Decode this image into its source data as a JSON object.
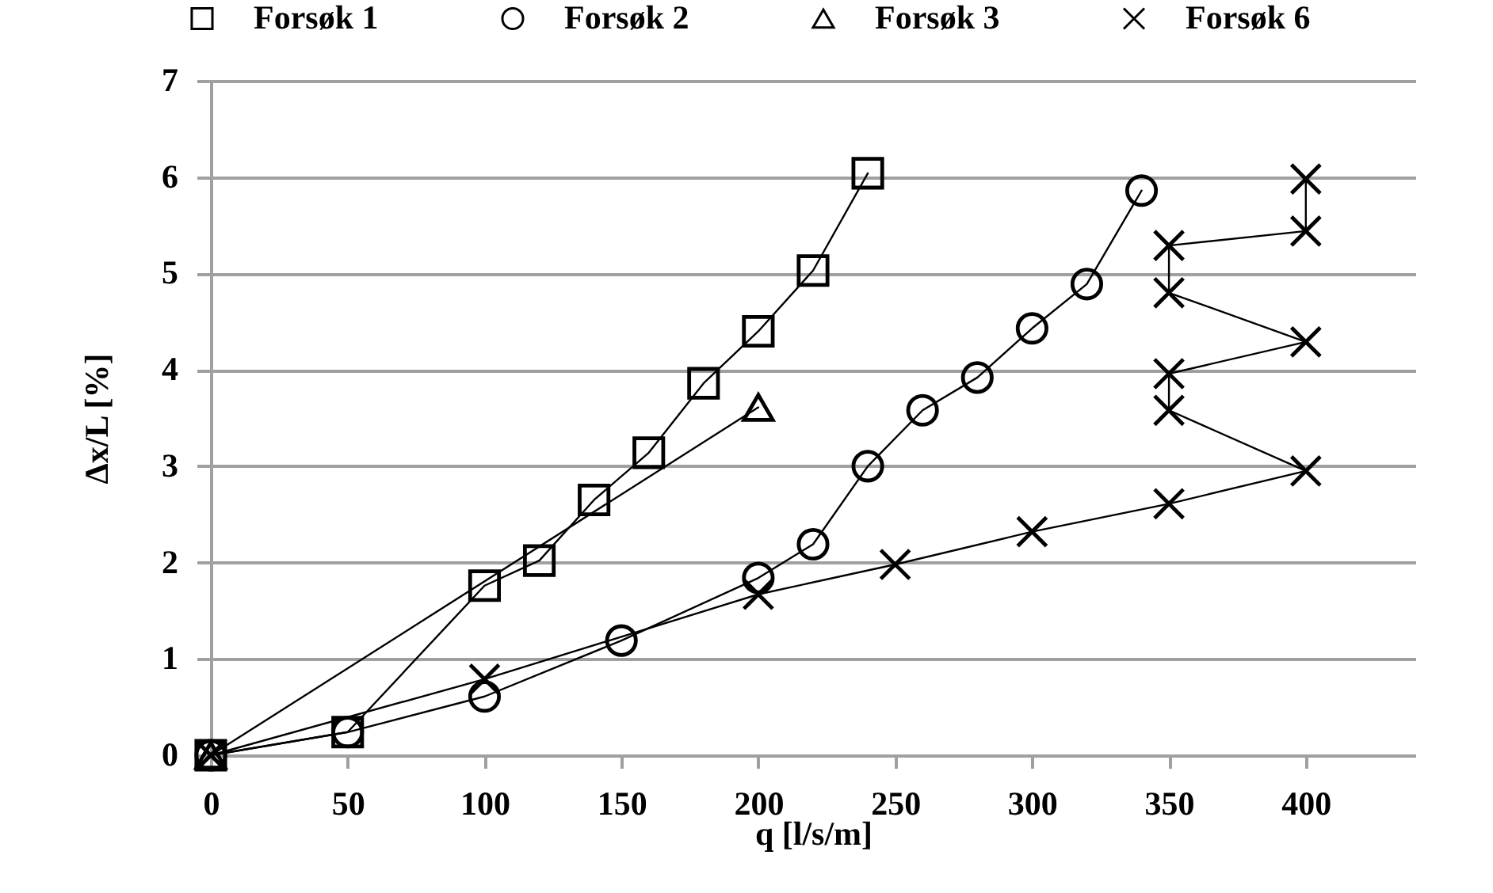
{
  "chart_data": {
    "type": "line",
    "xlabel": "q [l/s/m]",
    "ylabel": "Δx/L [%]",
    "xlim": [
      0,
      440
    ],
    "xticks": [
      0,
      50,
      100,
      150,
      200,
      250,
      300,
      350,
      400
    ],
    "ylim": [
      0,
      7
    ],
    "yticks": [
      0,
      1,
      2,
      3,
      4,
      5,
      6,
      7
    ],
    "grid": "y",
    "legend": "top",
    "line_style": "solid",
    "series": [
      {
        "name": "Forsøk 1",
        "color": "#000000",
        "marker": "square",
        "x": [
          0,
          50,
          100,
          120,
          140,
          160,
          180,
          200,
          220,
          240
        ],
        "values": [
          0,
          0.24,
          1.76,
          2.02,
          2.65,
          3.14,
          3.86,
          4.4,
          5.03,
          6.04
        ]
      },
      {
        "name": "Forsøk 2",
        "color": "#000000",
        "marker": "circle",
        "x": [
          0,
          50,
          100,
          150,
          200,
          220,
          240,
          260,
          280,
          300,
          320,
          340
        ],
        "values": [
          0,
          0.24,
          0.61,
          1.19,
          1.84,
          2.19,
          3.0,
          3.58,
          3.92,
          4.43,
          4.89,
          5.86
        ]
      },
      {
        "name": "Forsøk 3",
        "color": "#000000",
        "marker": "triangle",
        "x": [
          0,
          200
        ],
        "values": [
          0,
          3.61
        ]
      },
      {
        "name": "Forsøk 6",
        "color": "#000000",
        "marker": "cross",
        "x": [
          0,
          100,
          200,
          250,
          300,
          350,
          400,
          350,
          350,
          400,
          350,
          350,
          400,
          400
        ],
        "values": [
          0,
          0.79,
          1.67,
          1.98,
          2.32,
          2.61,
          2.95,
          3.58,
          3.96,
          4.29,
          4.8,
          5.29,
          5.44,
          5.98
        ]
      }
    ]
  }
}
